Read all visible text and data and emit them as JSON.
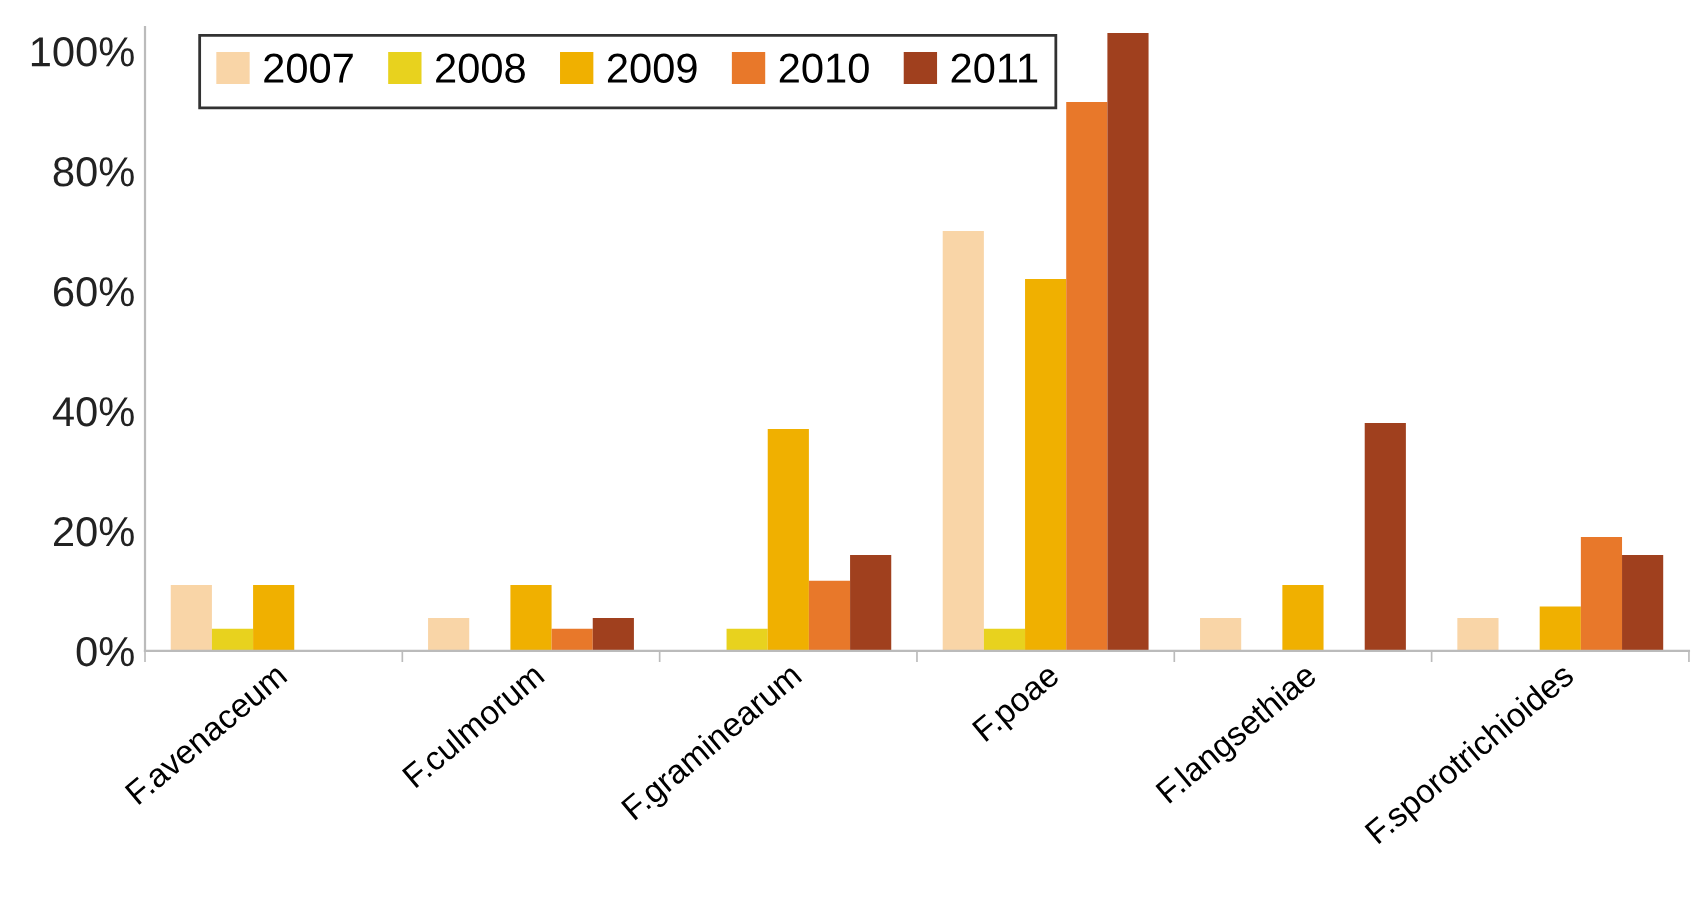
{
  "chart_data": {
    "type": "bar",
    "categories": [
      "F.avenaceum",
      "F.culmorum",
      "F.graminearum",
      "F.poae",
      "F.langsethiae",
      "F.sporotrichioides"
    ],
    "series": [
      {
        "name": "2007",
        "color": "#f9d5a7",
        "values": [
          11,
          5.5,
          0,
          70,
          5.5,
          5.5
        ]
      },
      {
        "name": "2008",
        "color": "#e8d21e",
        "values": [
          3.7,
          0,
          3.7,
          3.7,
          0,
          0
        ]
      },
      {
        "name": "2009",
        "color": "#f0b000",
        "values": [
          11,
          11,
          37,
          62,
          11,
          7.4
        ]
      },
      {
        "name": "2010",
        "color": "#e8782a",
        "values": [
          0,
          3.7,
          11.7,
          91.5,
          0,
          19
        ]
      },
      {
        "name": "2011",
        "color": "#a0401e",
        "values": [
          0,
          5.5,
          16,
          103,
          38,
          16
        ]
      }
    ],
    "ylim": [
      0,
      104
    ],
    "yticks": [
      {
        "value": 0,
        "label": "0%"
      },
      {
        "value": 20,
        "label": "20%"
      },
      {
        "value": 40,
        "label": "40%"
      },
      {
        "value": 60,
        "label": "60%"
      },
      {
        "value": 80,
        "label": "80%"
      },
      {
        "value": 100,
        "label": "100%"
      }
    ],
    "grid": false,
    "legend": "top left"
  }
}
